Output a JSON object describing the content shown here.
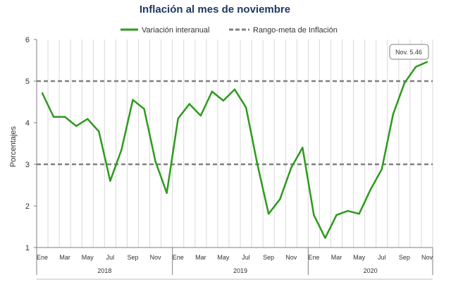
{
  "chart_data": {
    "type": "line",
    "title": "Inflación al mes de noviembre",
    "ylabel": "Porcentajes",
    "xlabel": "",
    "ylim": [
      1,
      6
    ],
    "yticks": [
      "1",
      "2",
      "3",
      "4",
      "5",
      "6"
    ],
    "x": [
      "2018-01",
      "2018-02",
      "2018-03",
      "2018-04",
      "2018-05",
      "2018-06",
      "2018-07",
      "2018-08",
      "2018-09",
      "2018-10",
      "2018-11",
      "2018-12",
      "2019-01",
      "2019-02",
      "2019-03",
      "2019-04",
      "2019-05",
      "2019-06",
      "2019-07",
      "2019-08",
      "2019-09",
      "2019-10",
      "2019-11",
      "2019-12",
      "2020-01",
      "2020-02",
      "2020-03",
      "2020-04",
      "2020-05",
      "2020-06",
      "2020-07",
      "2020-08",
      "2020-09",
      "2020-10",
      "2020-11"
    ],
    "month_tick_labels": [
      "Ene",
      "Mar",
      "May",
      "Jul",
      "Sep",
      "Nov"
    ],
    "years": [
      "2018",
      "2019",
      "2020"
    ],
    "grid": true,
    "legend_position": "top-center",
    "series": [
      {
        "name": "Variación interanual",
        "color": "#2e9a1e",
        "style": "solid",
        "values": [
          4.71,
          4.14,
          4.14,
          3.92,
          4.09,
          3.79,
          2.6,
          3.35,
          4.55,
          4.33,
          3.07,
          2.31,
          4.1,
          4.45,
          4.17,
          4.75,
          4.53,
          4.8,
          4.37,
          3.01,
          1.81,
          2.16,
          2.92,
          3.4,
          1.78,
          1.23,
          1.78,
          1.88,
          1.81,
          2.39,
          2.88,
          4.2,
          4.95,
          5.34,
          5.46
        ]
      },
      {
        "name": "Rango-meta de Inflación",
        "color": "#808080",
        "style": "dashed",
        "lines": [
          3,
          5
        ]
      }
    ],
    "annotation": "Nov. 5.46"
  }
}
